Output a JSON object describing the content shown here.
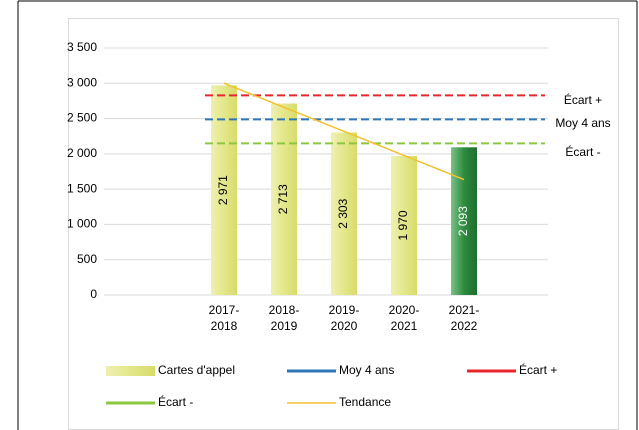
{
  "chart_data": {
    "type": "bar",
    "categories": [
      "2017-2018",
      "2018-2019",
      "2019-2020",
      "2020-2021",
      "2021-2022"
    ],
    "series": [
      {
        "name": "Cartes d'appel",
        "colors": [
          "#e3e78a",
          "#e3e78a",
          "#e3e78a",
          "#e3e78a",
          "#2e8b3e"
        ],
        "values": [
          2971,
          2713,
          2303,
          1970,
          2093
        ],
        "value_labels": [
          "2 971",
          "2 713",
          "2 303",
          "1 970",
          "2 093"
        ]
      },
      {
        "name": "Moy 4 ans",
        "type": "hline",
        "color": "#2e75b6",
        "value": 2489,
        "label": "Moy 4 ans"
      },
      {
        "name": "Écart +",
        "type": "hline",
        "color": "#e8262b",
        "value": 2829,
        "label": "Écart +"
      },
      {
        "name": "Écart -",
        "type": "hline",
        "color": "#8dc63f",
        "value": 2149,
        "label": "Écart -"
      },
      {
        "name": "Tendance",
        "type": "line",
        "color": "#f2c12e",
        "values": [
          3001,
          2660,
          2319,
          1978,
          1636
        ]
      }
    ],
    "ylim": [
      0,
      3500
    ],
    "yticks": [
      0,
      500,
      {
        "value": 1000,
        "label": "1 000"
      },
      {
        "value": 1500,
        "label": "1 500"
      },
      {
        "value": 2000,
        "label": "2 000"
      },
      {
        "value": 2500,
        "label": "2 500"
      },
      {
        "value": 3000,
        "label": "3 000"
      },
      {
        "value": 3500,
        "label": "3 500"
      }
    ],
    "grid": true
  }
}
